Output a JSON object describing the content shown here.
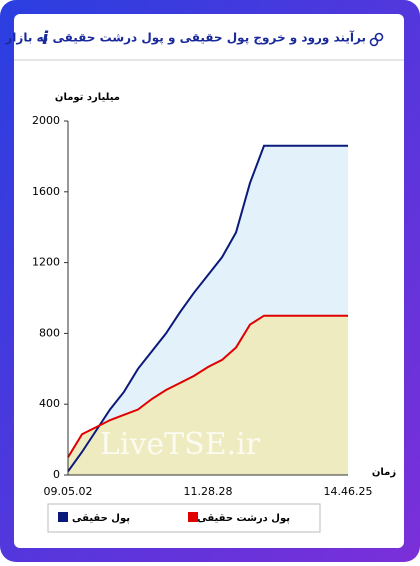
{
  "chart_data": {
    "type": "area",
    "title": "برآیند ورود و خروج پول حقیقی و پول درشت حقیقی به بازار",
    "y_label": "میلیارد تومان",
    "x_label": "زمان",
    "watermark": "LiveTSE.ir",
    "categories": [
      "09.05.02",
      null,
      null,
      null,
      null,
      null,
      null,
      null,
      null,
      null,
      "11.28.28",
      null,
      null,
      null,
      null,
      null,
      null,
      null,
      null,
      null,
      "14.46.25"
    ],
    "series": [
      {
        "name": "پول حقیقی",
        "color": "#0b1a7a",
        "fill": "#e3f1fb",
        "values": [
          20,
          130,
          250,
          370,
          470,
          600,
          700,
          800,
          920,
          1030,
          1130,
          1230,
          1370,
          1650,
          1860,
          1860,
          1860,
          1860,
          1860,
          1860,
          1860
        ]
      },
      {
        "name": "پول درشت حقیقی",
        "color": "#e00000",
        "fill": "#efebc0",
        "values": [
          100,
          230,
          270,
          310,
          340,
          370,
          430,
          480,
          520,
          560,
          610,
          650,
          720,
          850,
          900,
          900,
          900,
          900,
          900,
          900,
          900
        ]
      }
    ],
    "ylim": [
      0,
      2000
    ],
    "yticks": [
      0,
      400,
      800,
      1200,
      1600,
      2000
    ]
  }
}
